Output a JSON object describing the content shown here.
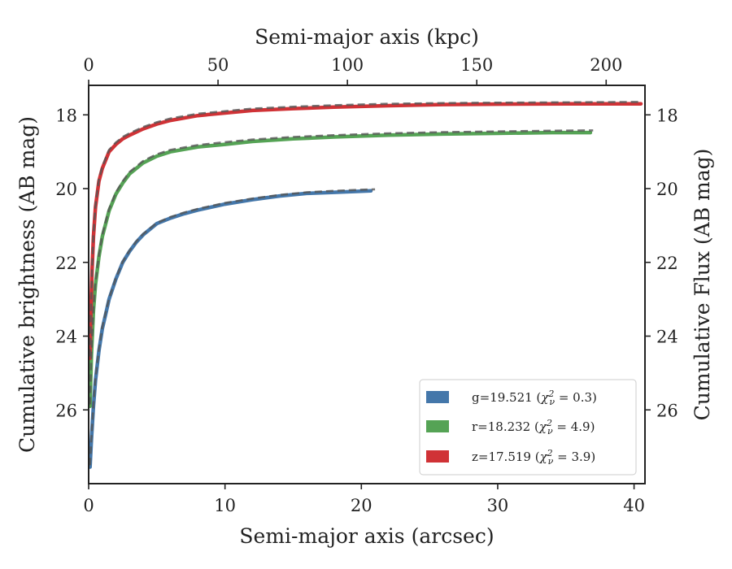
{
  "chart_data": {
    "type": "line",
    "xlabel": "Semi-major axis (arcsec)",
    "top_xlabel": "Semi-major axis (kpc)",
    "ylabel": "Cumulative brightness (AB mag)",
    "right_ylabel": "Cumulative Flux (AB mag)",
    "xlim": [
      0,
      40.8
    ],
    "ylim": [
      28.0,
      17.2
    ],
    "y_inverted": true,
    "top_xlim": [
      0,
      215
    ],
    "x_ticks": [
      0,
      10,
      20,
      30,
      40
    ],
    "y_ticks": [
      18,
      20,
      22,
      24,
      26
    ],
    "top_x_ticks": [
      0,
      50,
      100,
      150,
      200
    ],
    "grid": false,
    "legend_position": "lower-right",
    "legend": [
      {
        "prefix": "g=19.521 (",
        "chi_value": " = 0.3)",
        "color": "#4477aa"
      },
      {
        "prefix": "r=18.232 (",
        "chi_value": " = 4.9)",
        "color": "#55a355"
      },
      {
        "prefix": "z=17.519 (",
        "chi_value": " = 3.9)",
        "color": "#d03236"
      }
    ],
    "series": [
      {
        "name": "g",
        "color": "#4477aa",
        "x": [
          0.1,
          0.2,
          0.35,
          0.5,
          0.75,
          1.0,
          1.25,
          1.5,
          2.0,
          2.5,
          3.0,
          3.5,
          4.0,
          5.0,
          6.0,
          7.0,
          8.0,
          10.0,
          12.0,
          14.0,
          16.0,
          18.0,
          20.0,
          20.7
        ],
        "y": [
          27.55,
          26.8,
          25.9,
          25.2,
          24.4,
          23.8,
          23.4,
          23.0,
          22.45,
          22.0,
          21.7,
          21.45,
          21.25,
          20.95,
          20.8,
          20.68,
          20.58,
          20.42,
          20.3,
          20.2,
          20.13,
          20.1,
          20.07,
          20.06
        ]
      },
      {
        "name": "r",
        "color": "#55a355",
        "x": [
          0.1,
          0.2,
          0.35,
          0.5,
          0.75,
          1.0,
          1.5,
          2.0,
          2.5,
          3.0,
          4.0,
          5.0,
          6.0,
          8.0,
          10.0,
          12.0,
          15.0,
          18.0,
          22.0,
          26.0,
          30.0,
          34.0,
          36.8
        ],
        "y": [
          25.9,
          24.5,
          23.3,
          22.6,
          21.85,
          21.3,
          20.6,
          20.15,
          19.85,
          19.6,
          19.3,
          19.12,
          19.0,
          18.87,
          18.8,
          18.72,
          18.65,
          18.6,
          18.55,
          18.52,
          18.5,
          18.48,
          18.48
        ]
      },
      {
        "name": "z",
        "color": "#d03236",
        "x": [
          0.1,
          0.15,
          0.25,
          0.35,
          0.5,
          0.75,
          1.0,
          1.5,
          2.0,
          2.5,
          3.0,
          4.0,
          5.0,
          6.0,
          8.0,
          10.0,
          12.0,
          15.0,
          18.0,
          22.0,
          26.0,
          30.0,
          35.0,
          40.5
        ],
        "y": [
          24.6,
          23.5,
          22.2,
          21.3,
          20.5,
          19.8,
          19.45,
          19.0,
          18.8,
          18.65,
          18.55,
          18.38,
          18.25,
          18.15,
          18.02,
          17.95,
          17.88,
          17.83,
          17.79,
          17.75,
          17.72,
          17.71,
          17.7,
          17.7
        ]
      },
      {
        "name": "g-model",
        "dashed": true,
        "color": "#555555",
        "x": [
          0.1,
          0.2,
          0.35,
          0.5,
          0.75,
          1.0,
          1.25,
          1.5,
          2.0,
          2.5,
          3.0,
          3.5,
          4.0,
          5.0,
          6.0,
          7.0,
          8.0,
          10.0,
          12.0,
          14.0,
          16.0,
          18.0,
          20.0,
          21.0
        ],
        "y": [
          27.5,
          26.75,
          25.85,
          25.15,
          24.35,
          23.75,
          23.35,
          22.98,
          22.43,
          21.98,
          21.68,
          21.43,
          21.23,
          20.93,
          20.77,
          20.65,
          20.55,
          20.39,
          20.27,
          20.17,
          20.1,
          20.06,
          20.03,
          20.02
        ]
      },
      {
        "name": "r-model",
        "dashed": true,
        "color": "#555555",
        "x": [
          0.1,
          0.2,
          0.35,
          0.5,
          0.75,
          1.0,
          1.5,
          2.0,
          2.5,
          3.0,
          4.0,
          5.0,
          6.0,
          8.0,
          10.0,
          12.0,
          15.0,
          18.0,
          22.0,
          26.0,
          30.0,
          34.0,
          37.0
        ],
        "y": [
          25.85,
          24.45,
          23.25,
          22.55,
          21.8,
          21.25,
          20.55,
          20.1,
          19.8,
          19.55,
          19.25,
          19.07,
          18.95,
          18.82,
          18.74,
          18.67,
          18.6,
          18.55,
          18.5,
          18.47,
          18.45,
          18.43,
          18.42
        ]
      },
      {
        "name": "z-model",
        "dashed": true,
        "color": "#555555",
        "x": [
          0.1,
          0.15,
          0.25,
          0.35,
          0.5,
          0.75,
          1.0,
          1.5,
          2.0,
          2.5,
          3.0,
          4.0,
          5.0,
          6.0,
          8.0,
          10.0,
          12.0,
          15.0,
          18.0,
          22.0,
          26.0,
          30.0,
          35.0,
          40.5
        ],
        "y": [
          24.55,
          23.45,
          22.15,
          21.25,
          20.45,
          19.75,
          19.4,
          18.95,
          18.75,
          18.6,
          18.5,
          18.33,
          18.2,
          18.1,
          17.97,
          17.9,
          17.83,
          17.78,
          17.74,
          17.7,
          17.68,
          17.67,
          17.66,
          17.65
        ]
      }
    ]
  }
}
